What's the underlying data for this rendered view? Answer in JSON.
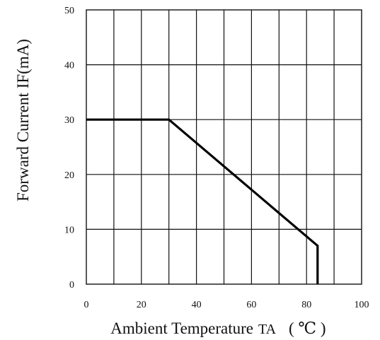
{
  "chart_data": {
    "type": "line",
    "title": "",
    "xlabel": "Ambient Temperature",
    "xlabel_symbol": "TA",
    "xlabel_unit": "( ℃ )",
    "ylabel": "Forward Current IF(mA)",
    "xlim": [
      0,
      100
    ],
    "ylim": [
      0,
      50
    ],
    "x_ticks": [
      "0",
      "20",
      "40",
      "60",
      "80",
      "100"
    ],
    "y_ticks": [
      "0",
      "10",
      "20",
      "30",
      "40",
      "50"
    ],
    "x_grid_step": 10,
    "y_grid_step": 10,
    "grid": true,
    "series": [
      {
        "x": [
          0,
          30,
          84,
          84
        ],
        "y": [
          30,
          30,
          7,
          0
        ]
      }
    ]
  }
}
